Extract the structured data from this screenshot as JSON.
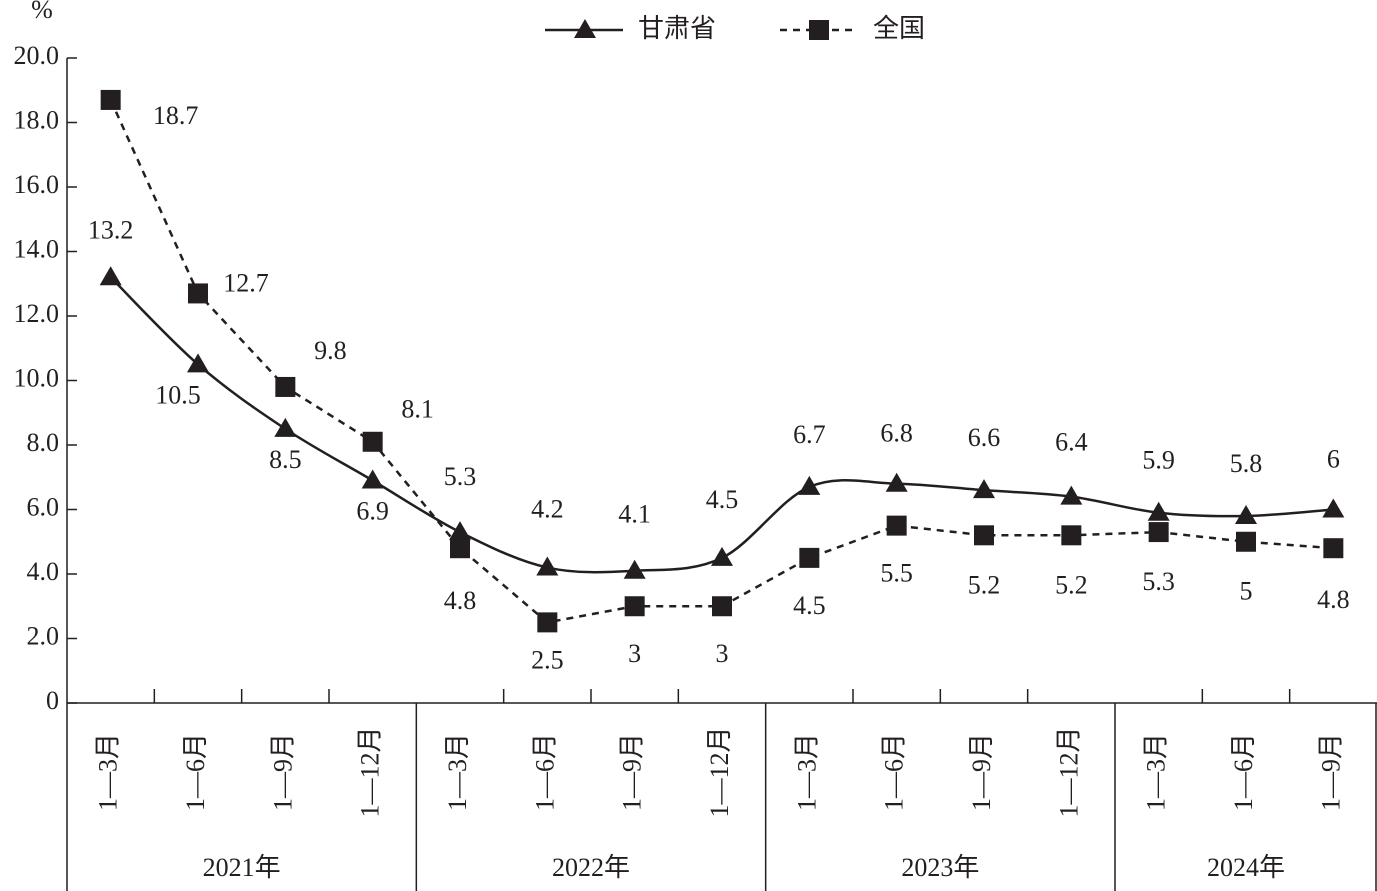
{
  "chart_data": {
    "type": "line",
    "y_label": "%",
    "categories": [
      "1—3月",
      "1—6月",
      "1—9月",
      "1—12月",
      "1—3月",
      "1—6月",
      "1—9月",
      "1—12月",
      "1—3月",
      "1—6月",
      "1—9月",
      "1—12月",
      "1—3月",
      "1—6月",
      "1—9月"
    ],
    "groups": [
      {
        "label": "2021年",
        "span": 4
      },
      {
        "label": "2022年",
        "span": 4
      },
      {
        "label": "2023年",
        "span": 4
      },
      {
        "label": "2024年",
        "span": 3
      }
    ],
    "series": [
      {
        "name": "甘肃省",
        "color": "#231f20",
        "line": "solid",
        "marker": "triangle",
        "values": [
          13.2,
          10.5,
          8.5,
          6.9,
          5.3,
          4.2,
          4.1,
          4.5,
          6.7,
          6.8,
          6.6,
          6.4,
          5.9,
          5.8,
          6
        ]
      },
      {
        "name": "全国",
        "color": "#231f20",
        "line": "dashed",
        "marker": "square",
        "values": [
          18.7,
          12.7,
          9.8,
          8.1,
          4.8,
          2.5,
          3,
          3,
          4.5,
          5.5,
          5.2,
          5.2,
          5.3,
          5,
          4.8
        ]
      }
    ],
    "ylim": [
      0,
      20
    ],
    "yticks": [
      0,
      {
        "value": 2,
        "label": "2.0"
      },
      {
        "value": 4,
        "label": "4.0"
      },
      {
        "value": 6,
        "label": "6.0"
      },
      {
        "value": 8,
        "label": "8.0"
      },
      {
        "value": 10,
        "label": "10.0"
      },
      {
        "value": 12,
        "label": "12.0"
      },
      {
        "value": 14,
        "label": "14.0"
      },
      {
        "value": 16,
        "label": "16.0"
      },
      {
        "value": 18,
        "label": "18.0"
      },
      {
        "value": 20,
        "label": "20.0"
      }
    ],
    "legend": "top"
  }
}
